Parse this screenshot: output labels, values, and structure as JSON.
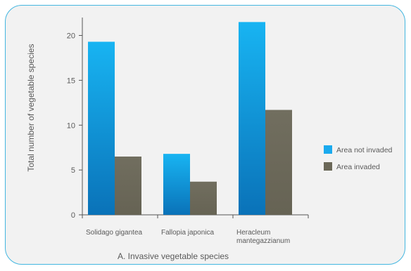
{
  "chart_data": {
    "type": "bar",
    "categories": [
      "Solidago gigantea",
      "Fallopia japonica",
      "Heracleum mantegazzianum"
    ],
    "category_lines": [
      [
        "Solidago gigantea"
      ],
      [
        "Fallopia japonica"
      ],
      [
        "Heracleum",
        "mantegazzianum"
      ]
    ],
    "series": [
      {
        "name": "Area not invaded",
        "values": [
          19.3,
          6.8,
          21.5
        ],
        "color": "#1aaaee"
      },
      {
        "name": "Area invaded",
        "values": [
          6.5,
          3.7,
          11.7
        ],
        "color": "#6b6858"
      }
    ],
    "xlabel": "A. Invasive vegetable species",
    "ylabel": "Total number of vegetable species",
    "ylim": [
      0,
      22
    ],
    "yticks": [
      0,
      5,
      10,
      15,
      20
    ],
    "legend": "right",
    "grid": false
  },
  "colors": {
    "frame_border": "#43b6e0",
    "frame_background": "#f2f2f2",
    "axis": "#555555",
    "text": "#5a5a5a"
  }
}
